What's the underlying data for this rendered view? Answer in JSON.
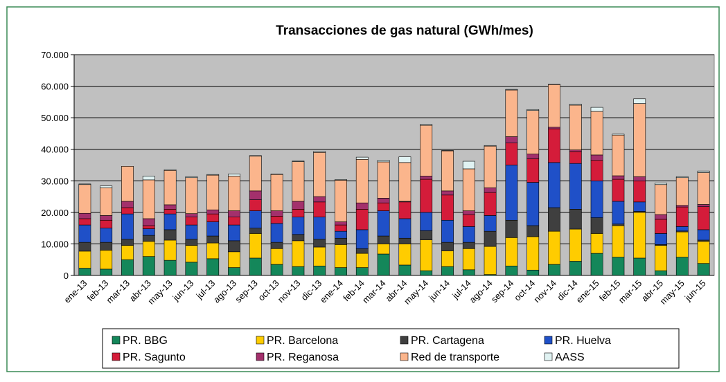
{
  "chart_data": {
    "type": "stacked_bar",
    "title": "Transacciones de gas natural (GWh/mes)",
    "categories": [
      "ene-13",
      "feb-13",
      "mar-13",
      "abr-13",
      "may-13",
      "jun-13",
      "jul-13",
      "ago-13",
      "sep-13",
      "oct-13",
      "nov-13",
      "dic-13",
      "ene-14",
      "feb-14",
      "mar-14",
      "abr-14",
      "may-14",
      "jun-14",
      "jul-14",
      "ago-14",
      "sep-14",
      "oct-14",
      "nov-14",
      "dic-14",
      "ene-15",
      "feb-15",
      "mar-15",
      "abr-15",
      "may-15",
      "jun-15"
    ],
    "series": [
      {
        "name": "PR. BBG",
        "color": "#14875a",
        "values": [
          2300,
          2000,
          5000,
          6000,
          4800,
          4200,
          5300,
          2500,
          5500,
          3500,
          2800,
          3000,
          2500,
          2500,
          6800,
          3300,
          1500,
          2800,
          1800,
          300,
          3000,
          1700,
          3500,
          4500,
          7000,
          5800,
          5500,
          1500,
          5800,
          3800
        ]
      },
      {
        "name": "PR. Barcelona",
        "color": "#ffcc00",
        "values": [
          5400,
          6000,
          4500,
          4800,
          6400,
          5300,
          5000,
          5000,
          7800,
          5000,
          8200,
          6000,
          7300,
          4500,
          3200,
          6700,
          9800,
          5000,
          6700,
          8900,
          9000,
          10600,
          10500,
          10200,
          6300,
          10000,
          14500,
          8000,
          8000,
          7000
        ]
      },
      {
        "name": "PR. Cartagena",
        "color": "#3f3f3f",
        "values": [
          2800,
          2500,
          2000,
          1900,
          3300,
          2000,
          2200,
          3500,
          1700,
          2000,
          2000,
          2500,
          2000,
          1500,
          2500,
          1800,
          2900,
          2700,
          2000,
          4800,
          5500,
          3500,
          7500,
          6300,
          5000,
          500,
          300,
          300,
          300,
          400
        ]
      },
      {
        "name": "PR. Huelva",
        "color": "#1f50c8",
        "values": [
          5500,
          4500,
          8000,
          2100,
          5000,
          4500,
          4500,
          5000,
          5500,
          6000,
          5500,
          7000,
          2200,
          6000,
          8000,
          6200,
          5800,
          7000,
          5000,
          5000,
          17500,
          13700,
          14300,
          14500,
          11700,
          7200,
          3000,
          3500,
          1400,
          3300
        ]
      },
      {
        "name": "PR. Sagunto",
        "color": "#d41c3a",
        "values": [
          2000,
          2500,
          2000,
          1000,
          1500,
          2500,
          2500,
          2500,
          3500,
          2300,
          2500,
          4800,
          2000,
          6500,
          2500,
          5300,
          10500,
          8000,
          3800,
          7300,
          7000,
          7500,
          10700,
          3800,
          6500,
          7000,
          6700,
          4500,
          6200,
          7300
        ]
      },
      {
        "name": "PR. Reganosa",
        "color": "#a3306c",
        "values": [
          1700,
          1500,
          2000,
          2200,
          1400,
          1100,
          1300,
          2000,
          2800,
          1700,
          2500,
          1700,
          1000,
          2000,
          1500,
          200,
          1000,
          1300,
          1200,
          1500,
          2000,
          1500,
          500,
          500,
          1700,
          1100,
          1300,
          1500,
          500,
          700
        ]
      },
      {
        "name": "Red de transporte",
        "color": "#fbb58c",
        "values": [
          9100,
          8800,
          11100,
          12300,
          10900,
          11400,
          11000,
          11000,
          11000,
          11500,
          12600,
          14000,
          13200,
          13800,
          11500,
          12300,
          16100,
          12700,
          13300,
          13200,
          14800,
          13800,
          13500,
          14200,
          13800,
          12900,
          23200,
          9500,
          8800,
          10100
        ]
      },
      {
        "name": "AASS",
        "color": "#e0f2f2",
        "values": [
          200,
          600,
          0,
          1200,
          200,
          300,
          200,
          700,
          200,
          200,
          200,
          300,
          200,
          700,
          500,
          1800,
          300,
          100,
          2400,
          200,
          200,
          300,
          100,
          300,
          1300,
          300,
          1500,
          500,
          300,
          500
        ]
      }
    ],
    "ylim": [
      0,
      70000
    ],
    "yticks": [
      0,
      {
        "value": 10000,
        "label": "10.000"
      },
      {
        "value": 20000,
        "label": "20.000"
      },
      {
        "value": 30000,
        "label": "30.000"
      },
      {
        "value": 40000,
        "label": "40.000"
      },
      {
        "value": 50000,
        "label": "50.000"
      },
      {
        "value": 60000,
        "label": "60.000"
      },
      {
        "value": 70000,
        "label": "70.000"
      }
    ],
    "grid": true,
    "plot_background": "#c0c0c0"
  }
}
